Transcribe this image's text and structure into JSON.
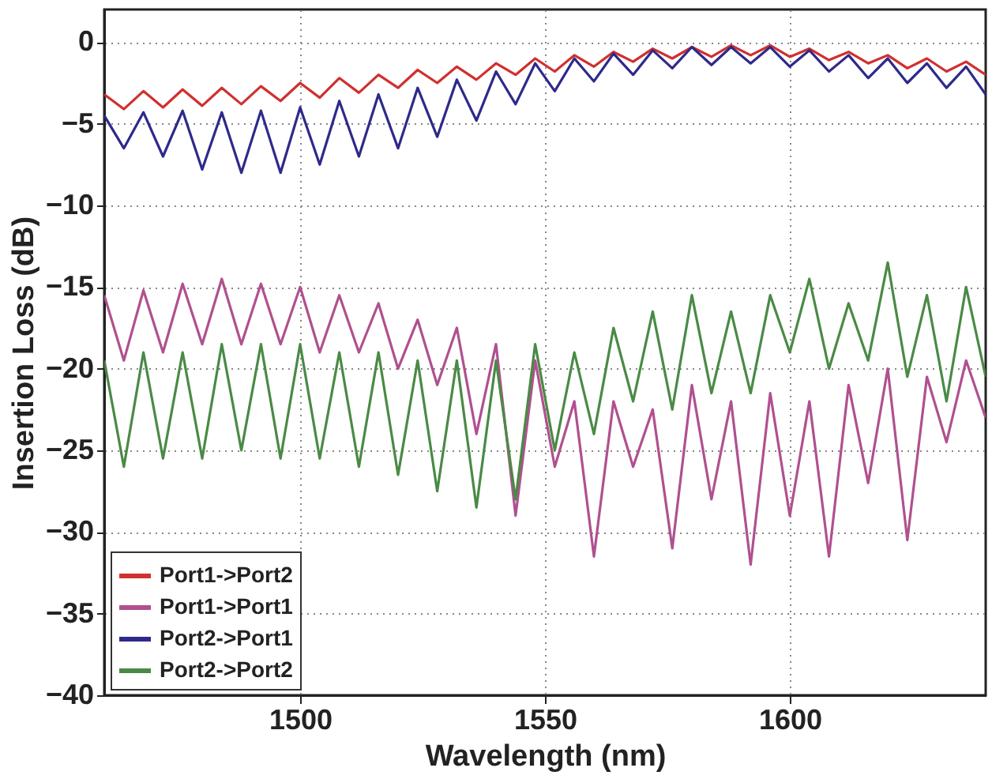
{
  "chart_data": {
    "type": "line",
    "xlabel": "Wavelength (nm)",
    "ylabel": "Insertion Loss (dB)",
    "xlim": [
      1460,
      1640
    ],
    "ylim": [
      -40,
      2
    ],
    "xticks": [
      {
        "value": 1500,
        "label": "1500"
      },
      {
        "value": 1550,
        "label": "1550"
      },
      {
        "value": 1600,
        "label": "1600"
      }
    ],
    "yticks": [
      -40,
      -35,
      -30,
      -25,
      -20,
      -15,
      -10,
      -5,
      0
    ],
    "grid": true,
    "legend": "bottom left",
    "line_style": "solid",
    "x": [
      1460,
      1464,
      1468,
      1472,
      1476,
      1480,
      1484,
      1488,
      1492,
      1496,
      1500,
      1504,
      1508,
      1512,
      1516,
      1520,
      1524,
      1528,
      1532,
      1536,
      1540,
      1544,
      1548,
      1552,
      1556,
      1560,
      1564,
      1568,
      1572,
      1576,
      1580,
      1584,
      1588,
      1592,
      1596,
      1600,
      1604,
      1608,
      1612,
      1616,
      1620,
      1624,
      1628,
      1632,
      1636,
      1640
    ],
    "series": [
      {
        "name": "Port1->Port2",
        "color": "#d03030",
        "values": [
          -3.2,
          -4.1,
          -3.0,
          -4.0,
          -2.9,
          -3.9,
          -2.8,
          -3.8,
          -2.7,
          -3.6,
          -2.5,
          -3.4,
          -2.2,
          -3.1,
          -2.0,
          -2.8,
          -1.7,
          -2.5,
          -1.5,
          -2.3,
          -1.3,
          -2.0,
          -1.0,
          -1.8,
          -0.8,
          -1.5,
          -0.6,
          -1.2,
          -0.4,
          -1.0,
          -0.3,
          -0.9,
          -0.2,
          -0.8,
          -0.2,
          -0.9,
          -0.4,
          -1.1,
          -0.6,
          -1.3,
          -0.8,
          -1.6,
          -1.0,
          -1.8,
          -1.2,
          -2.0
        ]
      },
      {
        "name": "Port1->Port1",
        "color": "#b0508f",
        "values": [
          -15.5,
          -19.5,
          -15.2,
          -19.0,
          -14.8,
          -18.5,
          -14.5,
          -18.5,
          -14.8,
          -18.5,
          -15.0,
          -19.0,
          -15.5,
          -19.0,
          -16.0,
          -20.0,
          -17.0,
          -21.0,
          -17.5,
          -24.0,
          -18.5,
          -29.0,
          -19.5,
          -26.0,
          -22.0,
          -31.5,
          -22.0,
          -26.0,
          -22.5,
          -31.0,
          -21.0,
          -28.0,
          -22.0,
          -32.0,
          -21.5,
          -29.0,
          -22.0,
          -31.5,
          -21.0,
          -27.0,
          -20.0,
          -30.5,
          -20.5,
          -24.5,
          -19.5,
          -23.0
        ]
      },
      {
        "name": "Port2->Port1",
        "color": "#2e2a8a",
        "values": [
          -4.5,
          -6.5,
          -4.3,
          -7.0,
          -4.2,
          -7.8,
          -4.3,
          -8.0,
          -4.2,
          -8.0,
          -4.0,
          -7.5,
          -3.6,
          -7.0,
          -3.2,
          -6.5,
          -2.8,
          -5.8,
          -2.3,
          -4.8,
          -1.8,
          -3.8,
          -1.3,
          -3.0,
          -1.0,
          -2.4,
          -0.7,
          -2.0,
          -0.5,
          -1.6,
          -0.3,
          -1.4,
          -0.3,
          -1.3,
          -0.3,
          -1.5,
          -0.5,
          -1.8,
          -0.8,
          -2.2,
          -1.0,
          -2.5,
          -1.3,
          -2.8,
          -1.5,
          -3.2
        ]
      },
      {
        "name": "Port2->Port2",
        "color": "#4a8a45",
        "values": [
          -19.5,
          -26.0,
          -19.0,
          -25.5,
          -19.0,
          -25.5,
          -18.5,
          -25.0,
          -18.5,
          -25.5,
          -18.5,
          -25.5,
          -19.0,
          -26.0,
          -19.0,
          -26.5,
          -19.5,
          -27.5,
          -19.5,
          -28.5,
          -19.5,
          -28.0,
          -18.5,
          -25.0,
          -19.0,
          -24.0,
          -17.5,
          -22.0,
          -16.5,
          -22.5,
          -15.5,
          -21.5,
          -16.5,
          -21.5,
          -15.5,
          -19.0,
          -14.5,
          -20.0,
          -16.0,
          -19.5,
          -13.5,
          -20.5,
          -15.5,
          -22.0,
          -15.0,
          -20.5
        ]
      }
    ]
  }
}
